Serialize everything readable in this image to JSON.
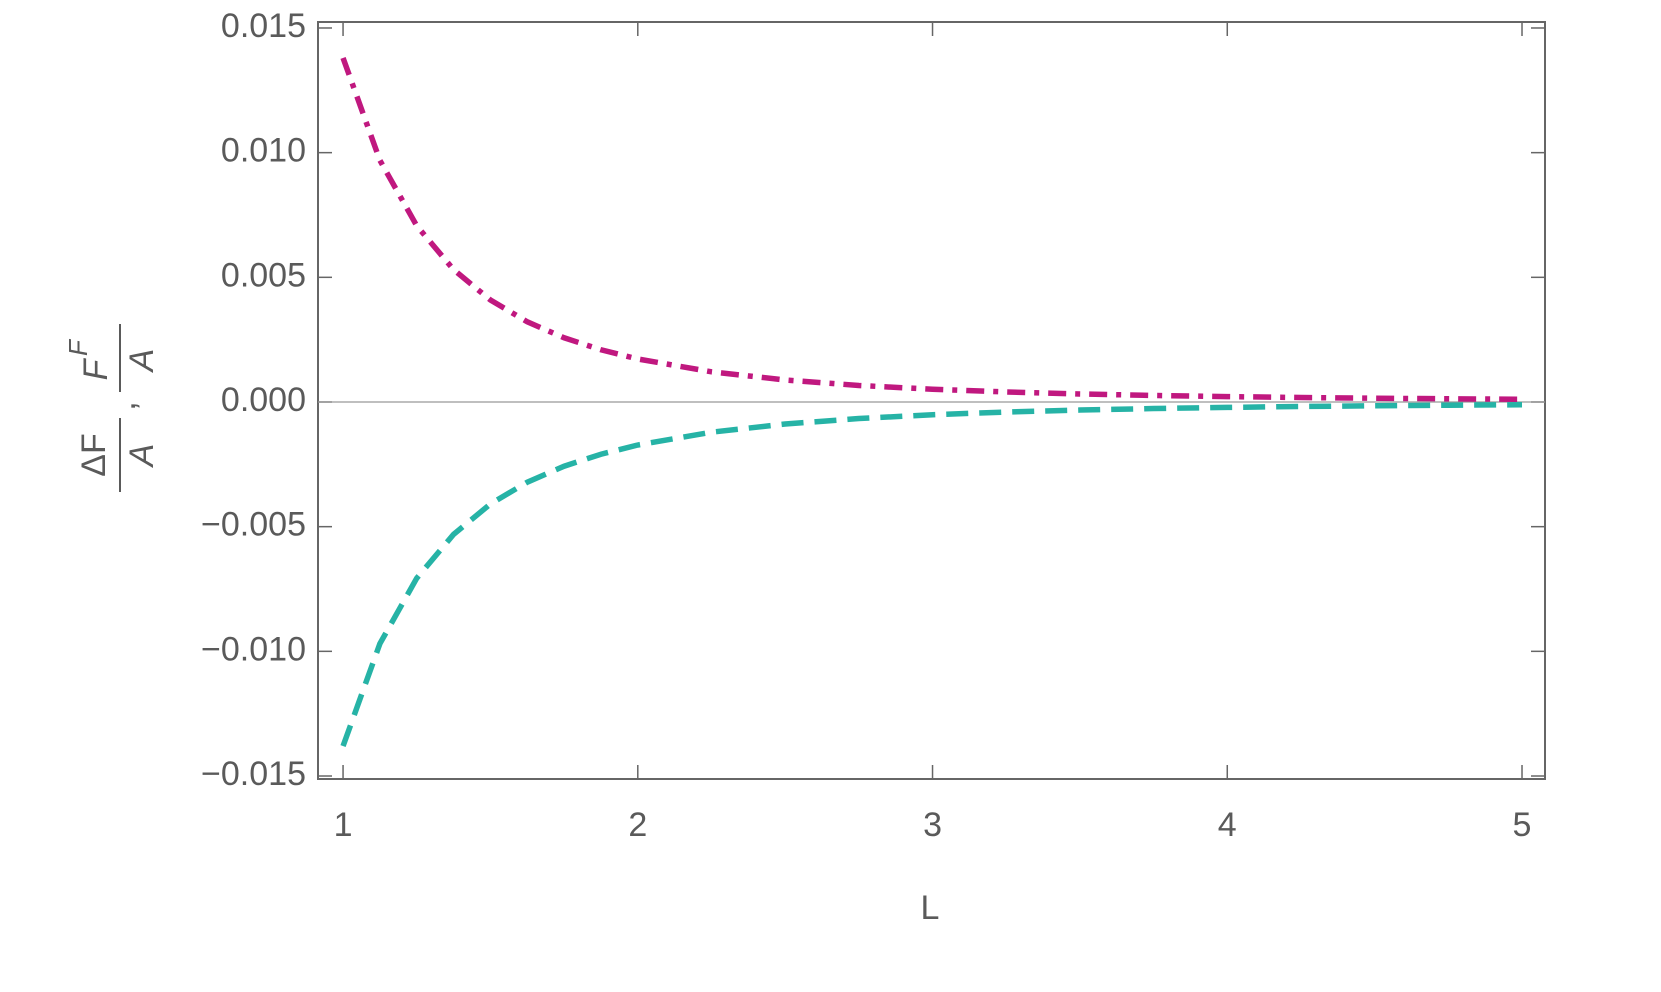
{
  "chart_data": {
    "type": "line",
    "xlabel": "L",
    "ylabel": [
      {
        "numerator": "ΔF",
        "denominator": "A"
      },
      {
        "numerator": "F",
        "superscript": "F",
        "denominator": "A"
      }
    ],
    "ylabel_separator": ",",
    "x": [
      1,
      1.125,
      1.25,
      1.375,
      1.5,
      1.625,
      1.75,
      1.875,
      2,
      2.25,
      2.5,
      2.75,
      3,
      3.25,
      3.5,
      3.75,
      4,
      4.25,
      4.5,
      4.75,
      5
    ],
    "series": [
      {
        "color": "#c0187f",
        "dash": "dashdot",
        "values": [
          0.0138,
          0.009692,
          0.007066,
          0.005309,
          0.004089,
          0.003216,
          0.002575,
          0.002094,
          0.001725,
          0.001211,
          0.000883,
          0.000663,
          0.000511,
          0.000402,
          0.000322,
          0.000262,
          0.000216,
          0.00018,
          0.000151,
          0.000129,
          0.00011
        ]
      },
      {
        "color": "#26b3a6",
        "dash": "dashed",
        "values": [
          -0.0138,
          -0.009692,
          -0.007066,
          -0.005309,
          -0.004089,
          -0.003216,
          -0.002575,
          -0.002094,
          -0.001725,
          -0.001211,
          -0.000883,
          -0.000663,
          -0.000511,
          -0.000402,
          -0.000322,
          -0.000262,
          -0.000216,
          -0.00018,
          -0.000151,
          -0.000129,
          -0.00011
        ]
      }
    ],
    "xlim": [
      0.915,
      5.078
    ],
    "ylim": [
      -0.01512,
      0.01524
    ],
    "xticks": [
      1,
      2,
      3,
      4,
      5
    ],
    "yticks": [
      0.015,
      {
        "value": 0.01,
        "label": "0.010"
      },
      0.005,
      {
        "value": 0,
        "label": "0.000"
      },
      {
        "value": -0.005,
        "label": "−0.005"
      },
      {
        "value": -0.01,
        "label": "−0.010"
      },
      {
        "value": -0.015,
        "label": "−0.015"
      }
    ],
    "grid": false
  }
}
